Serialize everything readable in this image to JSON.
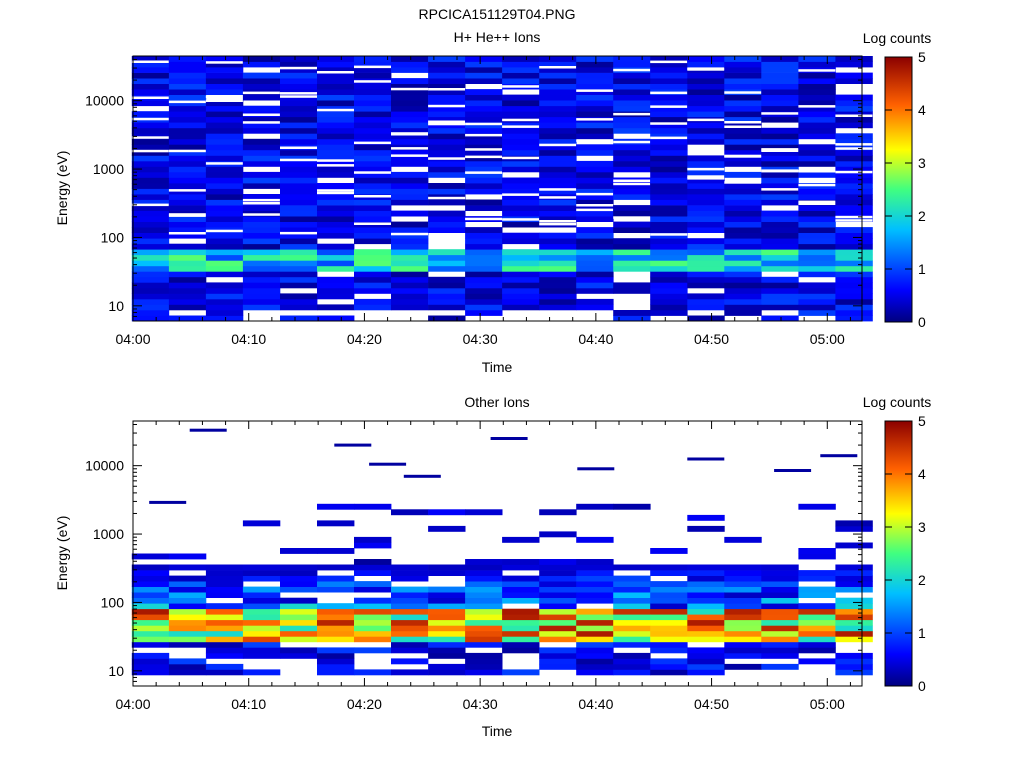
{
  "figure": {
    "title": "RPCICA151129T04.PNG"
  },
  "chart_data": [
    {
      "type": "heatmap",
      "title": "H+ He++ Ions",
      "xlabel": "Time",
      "ylabel": "Energy (eV)",
      "x_ticks": [
        "04:00",
        "04:10",
        "04:20",
        "04:30",
        "04:40",
        "04:50",
        "05:00"
      ],
      "x_range_minutes": [
        0,
        63
      ],
      "y_scale": "log",
      "y_ticks": [
        "10",
        "100",
        "1000",
        "10000"
      ],
      "y_range": [
        6,
        45000
      ],
      "colorbar": {
        "label": "Log counts",
        "range": [
          0,
          5
        ],
        "ticks": [
          "0",
          "1",
          "2",
          "3",
          "4",
          "5"
        ],
        "colormap": "rainbow"
      },
      "time_bins_minutes": [
        1.5,
        4.7,
        7.9,
        11.1,
        14.3,
        17.5,
        20.7,
        23.9,
        27.1,
        30.3,
        33.5,
        36.7,
        39.9,
        43.1,
        46.3,
        49.5,
        52.7,
        55.9,
        59.1,
        62.3
      ],
      "low_energy_peak": {
        "energy_ev": [
          30,
          70
        ],
        "log_counts": [
          1.0,
          2.6
        ]
      },
      "high_energy_background": {
        "energy_ev": [
          100,
          40000
        ],
        "log_counts": [
          0.2,
          1.0
        ]
      }
    },
    {
      "type": "heatmap",
      "title": "Other Ions",
      "xlabel": "Time",
      "ylabel": "Energy (eV)",
      "x_ticks": [
        "04:00",
        "04:10",
        "04:20",
        "04:30",
        "04:40",
        "04:50",
        "05:00"
      ],
      "x_range_minutes": [
        0,
        63
      ],
      "y_scale": "log",
      "y_ticks": [
        "10",
        "100",
        "1000",
        "10000"
      ],
      "y_range": [
        6,
        45000
      ],
      "colorbar": {
        "label": "Log counts",
        "range": [
          0,
          5
        ],
        "ticks": [
          "0",
          "1",
          "2",
          "3",
          "4",
          "5"
        ],
        "colormap": "rainbow"
      },
      "time_bins_minutes": [
        1.5,
        4.7,
        7.9,
        11.1,
        14.3,
        17.5,
        20.7,
        23.9,
        27.1,
        30.3,
        33.5,
        36.7,
        39.9,
        43.1,
        46.3,
        49.5,
        52.7,
        55.9,
        59.1,
        62.3
      ],
      "peak_band": {
        "energy_ev": [
          25,
          80
        ],
        "log_counts": [
          2.0,
          4.8
        ]
      },
      "sparse_high_energy_lines": [
        {
          "time_min": 3,
          "energy_ev": 2900
        },
        {
          "time_min": 6.5,
          "energy_ev": 33000
        },
        {
          "time_min": 19,
          "energy_ev": 20000
        },
        {
          "time_min": 22,
          "energy_ev": 10500
        },
        {
          "time_min": 25,
          "energy_ev": 7000
        },
        {
          "time_min": 32.5,
          "energy_ev": 25000
        },
        {
          "time_min": 40,
          "energy_ev": 9000
        },
        {
          "time_min": 49.5,
          "energy_ev": 12500
        },
        {
          "time_min": 57,
          "energy_ev": 8500
        },
        {
          "time_min": 61,
          "energy_ev": 14000
        }
      ]
    }
  ]
}
